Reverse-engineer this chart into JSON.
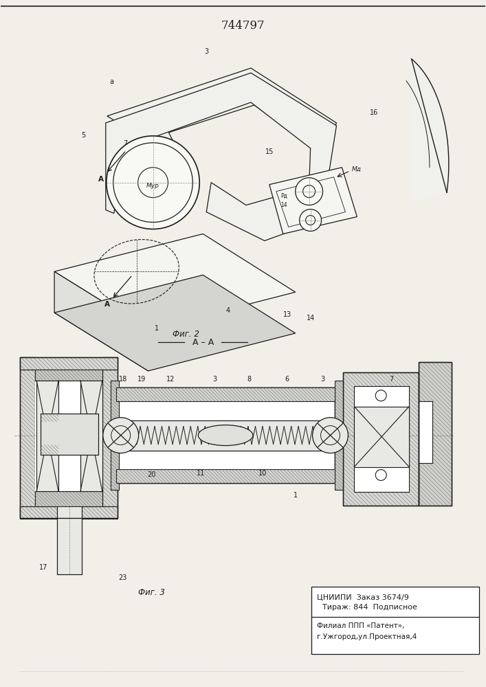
{
  "title_number": "744797",
  "bottom_text_line1": "ЦНИИПИ  Заказ 3674/9",
  "bottom_text_line2": "Тираж: 844  Подписное",
  "bottom_text_line3": "Филиал ППП «Патент»,",
  "bottom_text_line4": "г.Ужгород,ул.Проектная,4",
  "bg_color": "#f2efe9",
  "line_color": "#1a1a1a",
  "fig_width": 7.07,
  "fig_height": 10.0
}
